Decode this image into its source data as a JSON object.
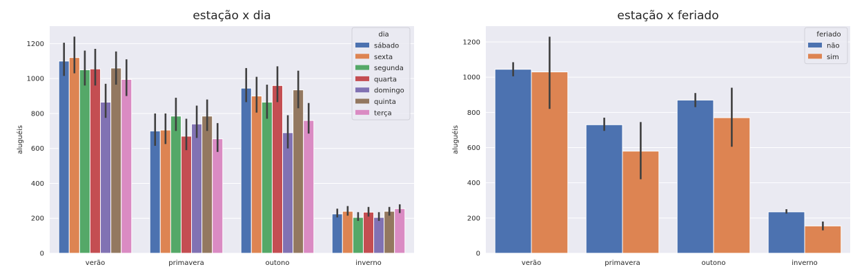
{
  "chart_data": [
    {
      "type": "bar",
      "title": "estação x dia",
      "xlabel": "",
      "ylabel": "aluguéis",
      "ylim": [
        0,
        1300
      ],
      "yticks": [
        0,
        200,
        400,
        600,
        800,
        1000,
        1200
      ],
      "grid": true,
      "legend": {
        "title": "dia",
        "placement": "top-right"
      },
      "categories": [
        "verão",
        "primavera",
        "outono",
        "inverno"
      ],
      "series": [
        {
          "name": "sábado",
          "color": "#4c72b0",
          "values": [
            1100,
            700,
            945,
            225
          ],
          "ci": [
            [
              1015,
              1205
            ],
            [
              615,
              800
            ],
            [
              865,
              1060
            ],
            [
              205,
              255
            ]
          ]
        },
        {
          "name": "sexta",
          "color": "#dd8452",
          "values": [
            1120,
            705,
            900,
            240
          ],
          "ci": [
            [
              1030,
              1240
            ],
            [
              625,
              800
            ],
            [
              805,
              1010
            ],
            [
              215,
              270
            ]
          ]
        },
        {
          "name": "segunda",
          "color": "#55a868",
          "values": [
            1050,
            785,
            865,
            205
          ],
          "ci": [
            [
              960,
              1160
            ],
            [
              700,
              890
            ],
            [
              770,
              965
            ],
            [
              185,
              235
            ]
          ]
        },
        {
          "name": "quarta",
          "color": "#c44e52",
          "values": [
            1055,
            670,
            960,
            235
          ],
          "ci": [
            [
              960,
              1170
            ],
            [
              590,
              770
            ],
            [
              865,
              1070
            ],
            [
              210,
              265
            ]
          ]
        },
        {
          "name": "domingo",
          "color": "#8172b3",
          "values": [
            865,
            740,
            690,
            205
          ],
          "ci": [
            [
              775,
              970
            ],
            [
              660,
              845
            ],
            [
              600,
              790
            ],
            [
              185,
              235
            ]
          ]
        },
        {
          "name": "quinta",
          "color": "#937860",
          "values": [
            1060,
            785,
            935,
            240
          ],
          "ci": [
            [
              965,
              1155
            ],
            [
              700,
              880
            ],
            [
              830,
              1045
            ],
            [
              215,
              265
            ]
          ]
        },
        {
          "name": "terça",
          "color": "#da8bc3",
          "values": [
            995,
            655,
            760,
            255
          ],
          "ci": [
            [
              900,
              1110
            ],
            [
              580,
              745
            ],
            [
              685,
              860
            ],
            [
              230,
              280
            ]
          ]
        }
      ]
    },
    {
      "type": "bar",
      "title": "estação x feriado",
      "xlabel": "",
      "ylabel": "aluguéis",
      "ylim": [
        0,
        1290
      ],
      "yticks": [
        0,
        200,
        400,
        600,
        800,
        1000,
        1200
      ],
      "grid": true,
      "legend": {
        "title": "feriado",
        "placement": "top-right"
      },
      "categories": [
        "verão",
        "primavera",
        "outono",
        "inverno"
      ],
      "series": [
        {
          "name": "não",
          "color": "#4c72b0",
          "values": [
            1045,
            730,
            870,
            235
          ],
          "ci": [
            [
              1005,
              1085
            ],
            [
              695,
              770
            ],
            [
              830,
              910
            ],
            [
              225,
              250
            ]
          ]
        },
        {
          "name": "sim",
          "color": "#dd8452",
          "values": [
            1030,
            580,
            770,
            155
          ],
          "ci": [
            [
              820,
              1230
            ],
            [
              420,
              745
            ],
            [
              605,
              940
            ],
            [
              130,
              180
            ]
          ]
        }
      ]
    }
  ]
}
